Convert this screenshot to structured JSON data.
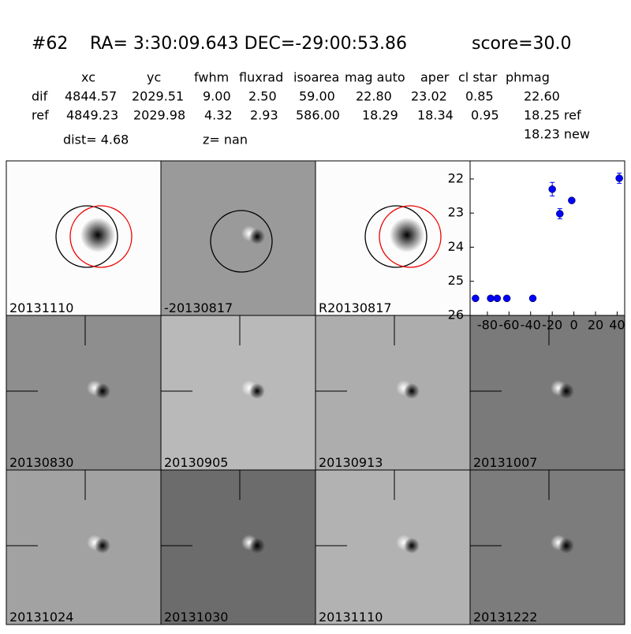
{
  "header": {
    "id": "#62",
    "coords": "RA= 3:30:09.643 DEC=-29:00:53.86",
    "score": "score=30.0"
  },
  "table": {
    "columns": [
      "xc",
      "yc",
      "fwhm",
      "fluxrad",
      "isoarea",
      "mag auto",
      "aper",
      "cl star",
      "phmag"
    ],
    "rows": [
      [
        "dif",
        "4844.57",
        "2029.51",
        "9.00",
        "2.50",
        "59.00",
        "22.80",
        "23.02",
        "0.85",
        "22.60"
      ],
      [
        "ref",
        "4849.23",
        "2029.98",
        "4.32",
        "2.93",
        "586.00",
        "18.29",
        "18.34",
        "0.95",
        "18.25 ref"
      ]
    ],
    "extra": "18.23 new",
    "dist": "dist=  4.68",
    "z": "z=   nan"
  },
  "panels": [
    {
      "label": "20131110"
    },
    {
      "label": "-20130817"
    },
    {
      "label": "R20130817"
    },
    {
      "label": "20130830"
    },
    {
      "label": "20130905"
    },
    {
      "label": "20130913"
    },
    {
      "label": "20131007"
    },
    {
      "label": "20131024"
    },
    {
      "label": "20131030"
    },
    {
      "label": "20131110"
    },
    {
      "label": "20131222"
    }
  ],
  "chart_data": {
    "type": "scatter",
    "x": [
      -91,
      -77,
      -71,
      -62,
      -38,
      -20,
      -13,
      -2,
      42
    ],
    "series": [
      {
        "color": "#0000ff",
        "values": [
          25.5,
          25.5,
          25.5,
          25.5,
          25.5,
          22.3,
          23.02,
          22.63,
          21.98
        ],
        "errors": [
          0.05,
          0.05,
          0.05,
          0.05,
          0.05,
          0.2,
          0.15,
          0.07,
          0.15
        ]
      }
    ],
    "xlim": [
      -96,
      47
    ],
    "xticks": [
      -80,
      -60,
      -40,
      -20,
      0,
      20,
      40
    ],
    "ylim": [
      26,
      21.47
    ],
    "yticks": [
      22,
      23,
      24,
      25,
      26
    ]
  }
}
